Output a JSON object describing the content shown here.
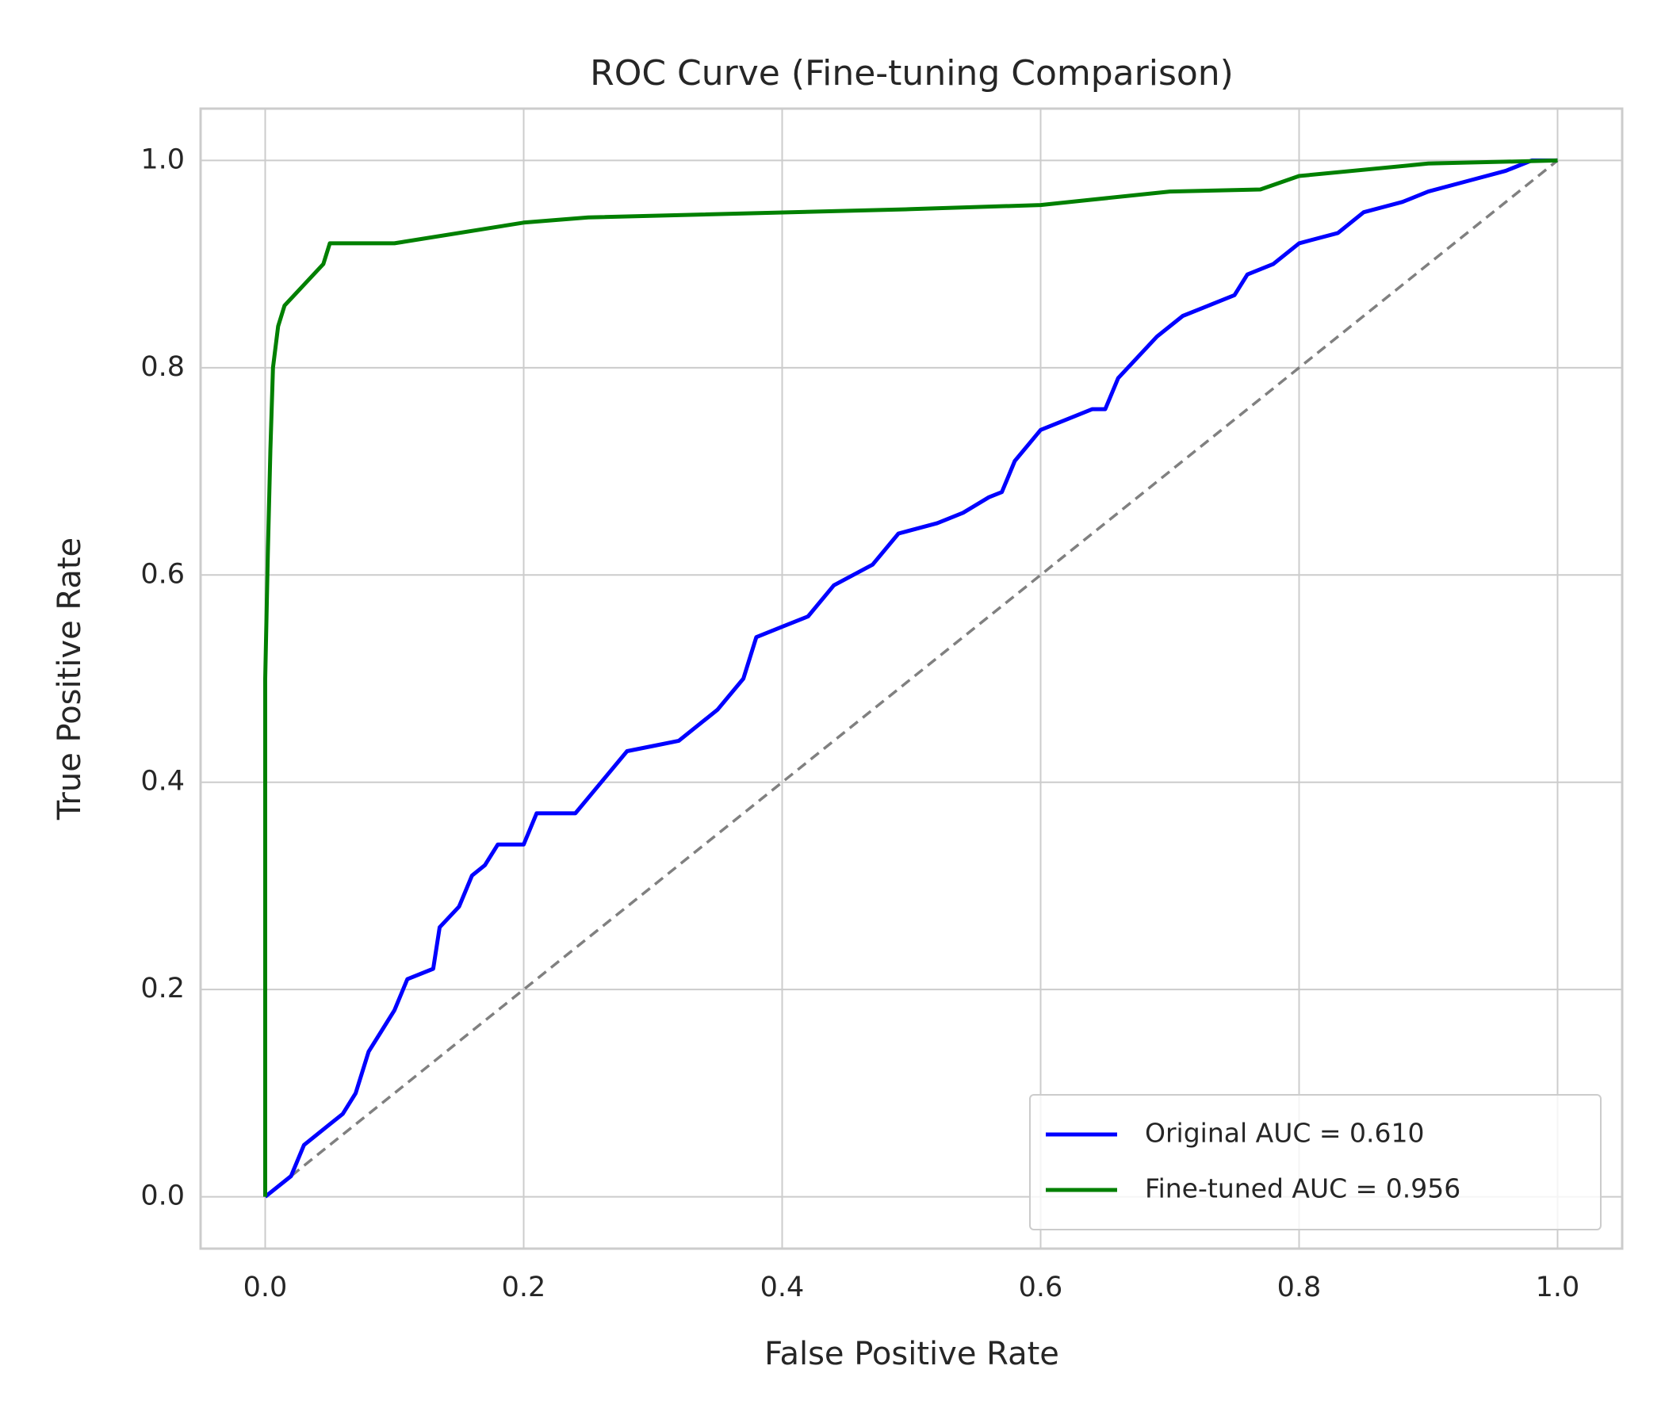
{
  "chart_data": {
    "type": "line",
    "title": "ROC Curve (Fine-tuning Comparison)",
    "x_label": "False Positive Rate",
    "y_label": "True Positive Rate",
    "xlim": [
      -0.05,
      1.05
    ],
    "ylim": [
      -0.05,
      1.05
    ],
    "xticks": [
      {
        "value": 0,
        "label": "0.0"
      },
      0.2,
      0.4,
      0.6,
      0.8,
      {
        "value": 1,
        "label": "1.0"
      }
    ],
    "yticks": [
      {
        "value": 0,
        "label": "0.0"
      },
      0.2,
      0.4,
      0.6,
      0.8,
      {
        "value": 1,
        "label": "1.0"
      }
    ],
    "grid": true,
    "legend_position": "lower right",
    "series": [
      {
        "name": "Original AUC = 0.610",
        "color": "#0000ff",
        "x": [
          0,
          0.02,
          0.03,
          0.04,
          0.05,
          0.06,
          0.07,
          0.08,
          0.09,
          0.1,
          0.11,
          0.13,
          0.135,
          0.15,
          0.16,
          0.17,
          0.18,
          0.2,
          0.21,
          0.24,
          0.26,
          0.28,
          0.3,
          0.32,
          0.35,
          0.37,
          0.38,
          0.4,
          0.42,
          0.44,
          0.47,
          0.49,
          0.52,
          0.54,
          0.56,
          0.57,
          0.58,
          0.6,
          0.64,
          0.65,
          0.66,
          0.69,
          0.71,
          0.73,
          0.75,
          0.76,
          0.78,
          0.8,
          0.83,
          0.85,
          0.88,
          0.9,
          0.93,
          0.96,
          0.98,
          1.0
        ],
        "values": [
          0,
          0.02,
          0.05,
          0.06,
          0.07,
          0.08,
          0.1,
          0.14,
          0.16,
          0.18,
          0.21,
          0.22,
          0.26,
          0.28,
          0.31,
          0.32,
          0.34,
          0.34,
          0.37,
          0.37,
          0.4,
          0.43,
          0.435,
          0.44,
          0.47,
          0.5,
          0.54,
          0.55,
          0.56,
          0.59,
          0.61,
          0.64,
          0.65,
          0.66,
          0.675,
          0.68,
          0.71,
          0.74,
          0.76,
          0.76,
          0.79,
          0.83,
          0.85,
          0.86,
          0.87,
          0.89,
          0.9,
          0.92,
          0.93,
          0.95,
          0.96,
          0.97,
          0.98,
          0.99,
          1.0,
          1.0
        ]
      },
      {
        "name": "Fine-tuned AUC = 0.956",
        "color": "#008000",
        "x": [
          0,
          0,
          0.002,
          0.004,
          0.006,
          0.01,
          0.015,
          0.03,
          0.045,
          0.05,
          0.1,
          0.2,
          0.25,
          0.5,
          0.6,
          0.7,
          0.77,
          0.8,
          0.9,
          1.0
        ],
        "values": [
          0,
          0.5,
          0.62,
          0.72,
          0.8,
          0.84,
          0.86,
          0.88,
          0.9,
          0.92,
          0.92,
          0.94,
          0.945,
          0.953,
          0.957,
          0.97,
          0.972,
          0.985,
          0.997,
          1.0
        ]
      }
    ],
    "reference_line": {
      "x": [
        0,
        1
      ],
      "values": [
        0,
        1
      ],
      "color": "#808080",
      "dashed": true
    }
  }
}
